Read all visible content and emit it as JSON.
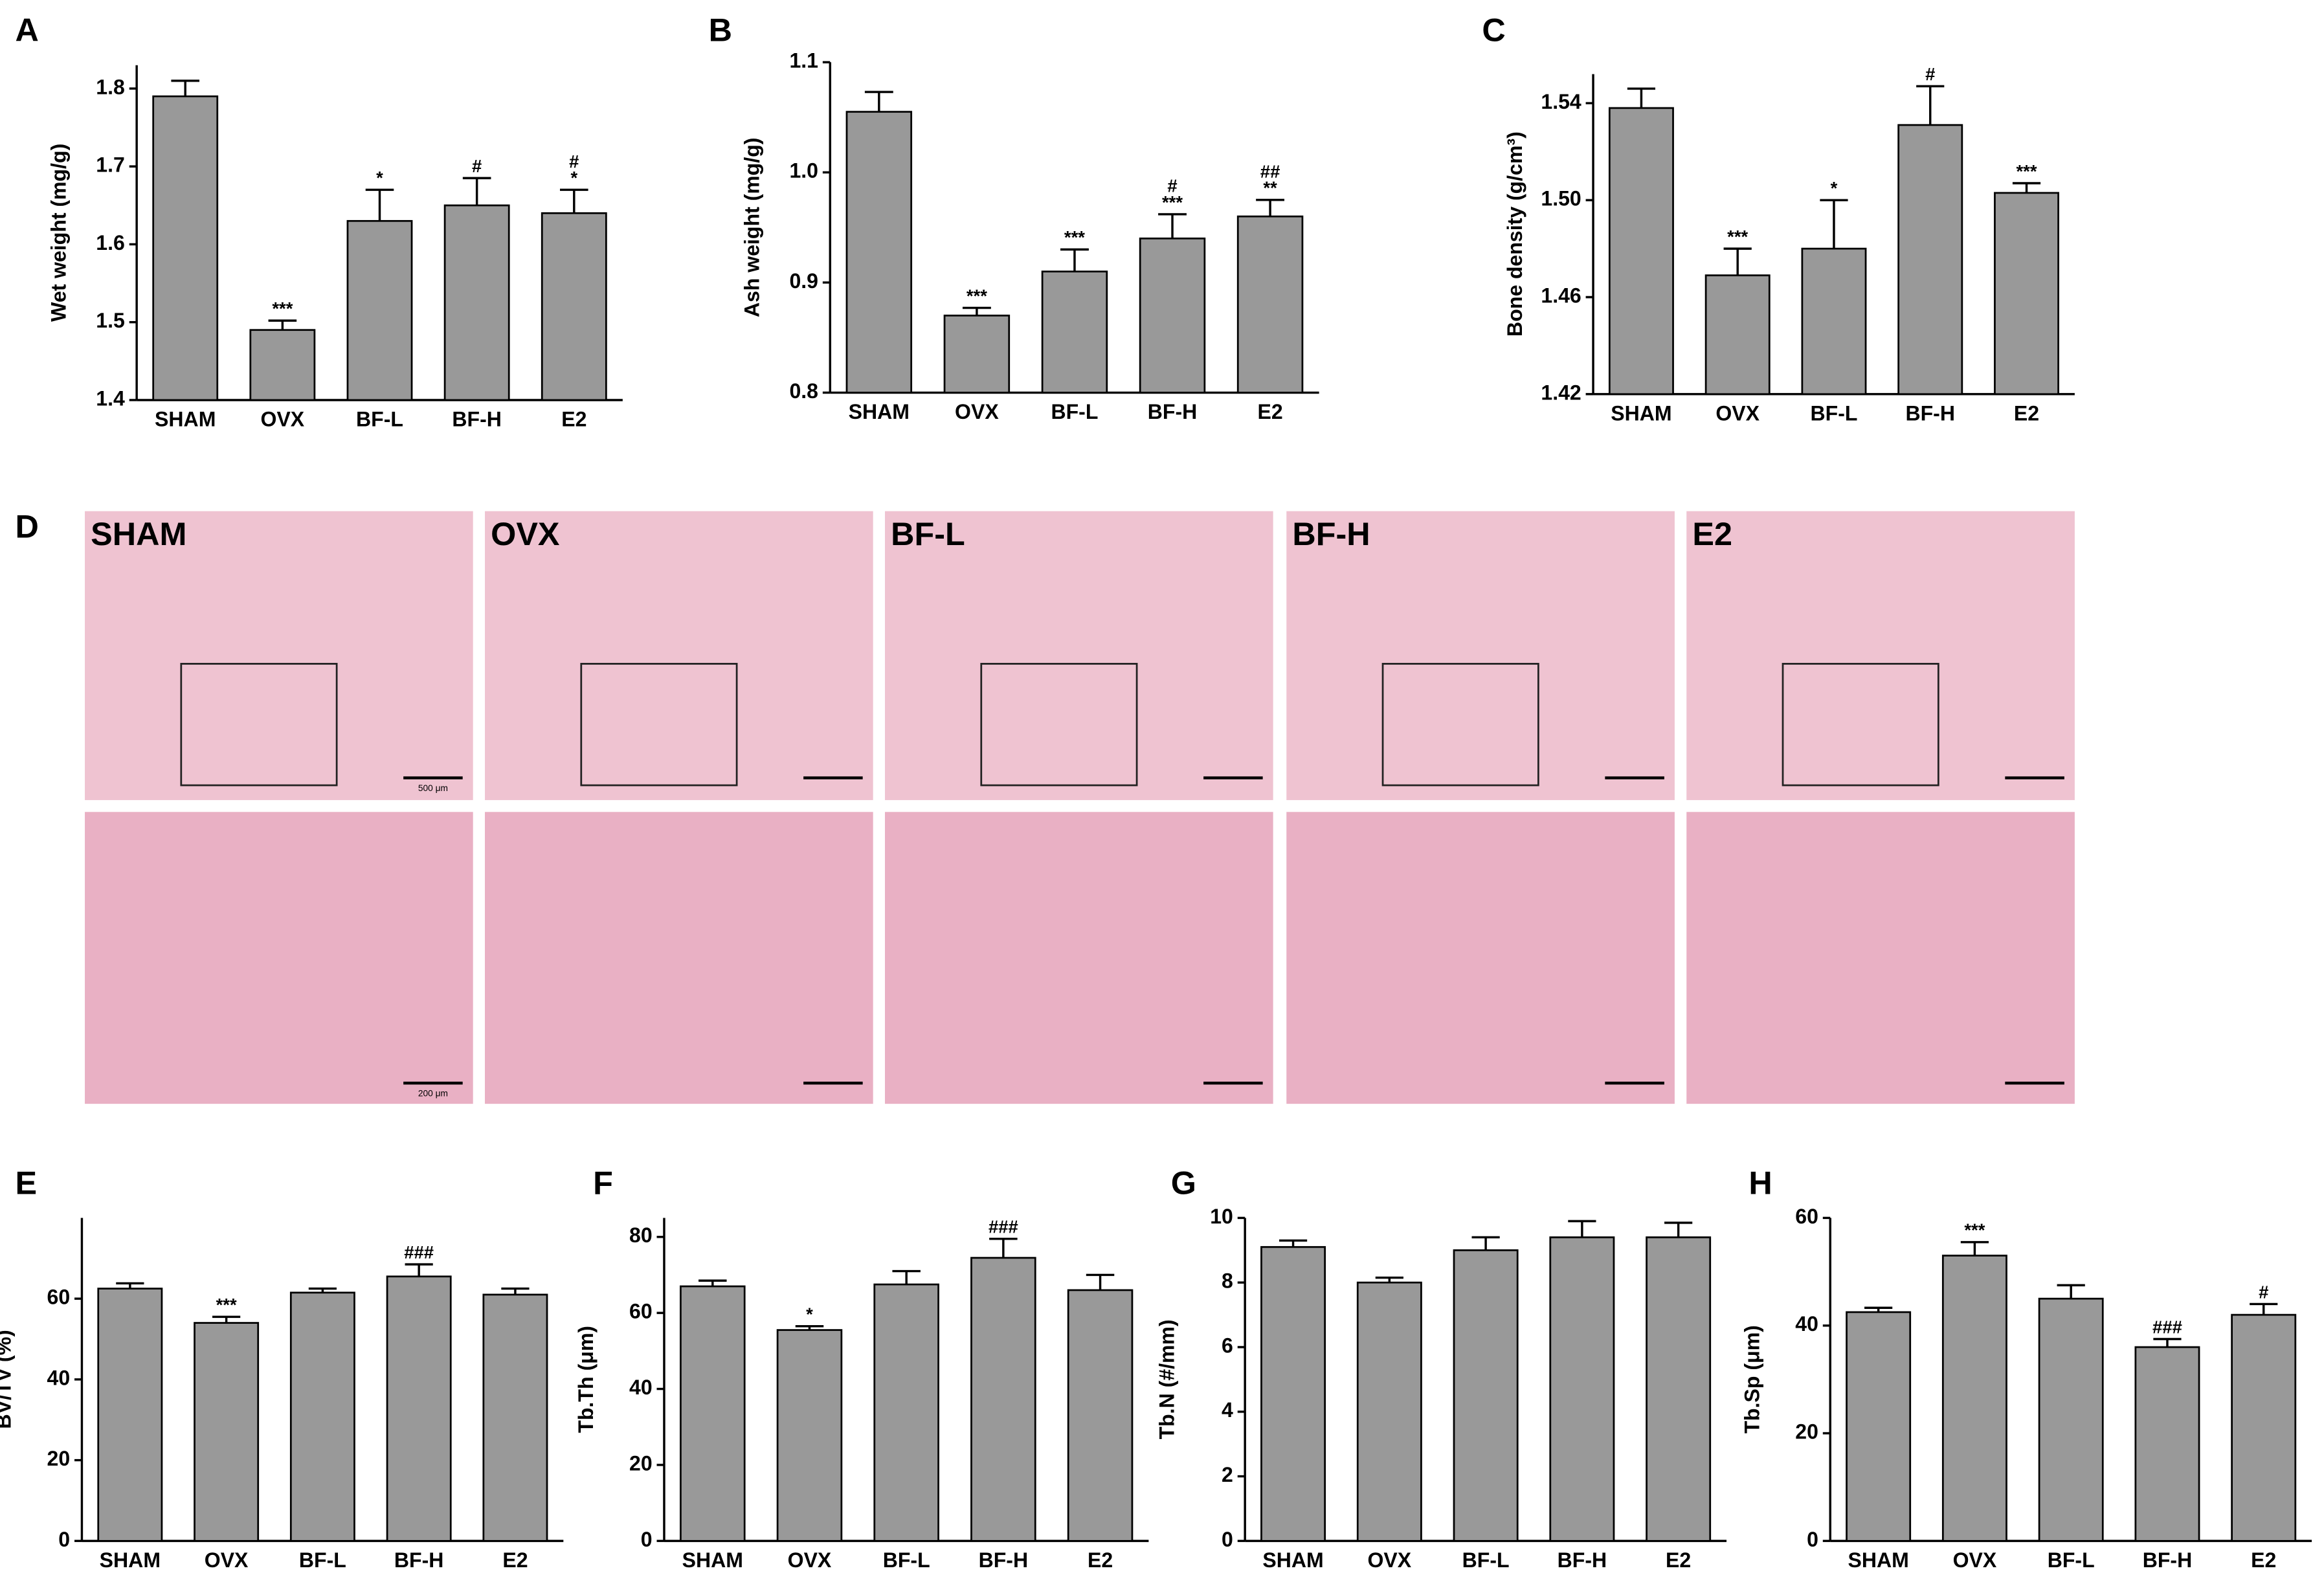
{
  "chart_data": [
    {
      "type": "bar",
      "panel": "A",
      "ylabel": "Wet weight (mg/g)",
      "categories": [
        "SHAM",
        "OVX",
        "BF-L",
        "BF-H",
        "E2"
      ],
      "values": [
        1.79,
        1.49,
        1.63,
        1.65,
        1.64
      ],
      "errors": [
        0.02,
        0.012,
        0.04,
        0.035,
        0.03
      ],
      "annotations": [
        null,
        [
          "***"
        ],
        [
          "*"
        ],
        [
          "#"
        ],
        [
          "#",
          "*"
        ]
      ],
      "color": "#999999",
      "ylim": [
        1.4,
        1.83
      ],
      "yticks": [
        1.4,
        1.5,
        1.6,
        1.7,
        1.8
      ]
    },
    {
      "type": "bar",
      "panel": "B",
      "ylabel": "Ash weight (mg/g)",
      "categories": [
        "SHAM",
        "OVX",
        "BF-L",
        "BF-H",
        "E2"
      ],
      "values": [
        1.055,
        0.87,
        0.91,
        0.94,
        0.96
      ],
      "errors": [
        0.018,
        0.007,
        0.02,
        0.022,
        0.015
      ],
      "annotations": [
        null,
        [
          "***"
        ],
        [
          "***"
        ],
        [
          "#",
          "***"
        ],
        [
          "##",
          "**"
        ]
      ],
      "color": "#999999",
      "ylim": [
        0.8,
        1.1
      ],
      "yticks": [
        0.8,
        0.9,
        {
          "value": 1,
          "label": "1.0"
        },
        1.1
      ]
    },
    {
      "type": "bar",
      "panel": "C",
      "ylabel": "Bone density (g/cm³)",
      "categories": [
        "SHAM",
        "OVX",
        "BF-L",
        "BF-H",
        "E2"
      ],
      "values": [
        1.538,
        1.469,
        1.48,
        1.531,
        1.503
      ],
      "errors": [
        0.008,
        0.011,
        0.02,
        0.016,
        0.004
      ],
      "annotations": [
        null,
        [
          "***"
        ],
        [
          "*"
        ],
        [
          "#"
        ],
        [
          "***"
        ]
      ],
      "color": "#999999",
      "ylim": [
        1.42,
        1.552
      ],
      "yticks": [
        1.42,
        1.46,
        {
          "value": 1.5,
          "label": "1.50"
        },
        1.54
      ]
    },
    {
      "type": "bar",
      "panel": "E",
      "ylabel": "BV/TV (%)",
      "categories": [
        "SHAM",
        "OVX",
        "BF-L",
        "BF-H",
        "E2"
      ],
      "values": [
        62.5,
        54,
        61.5,
        65.5,
        61
      ],
      "errors": [
        1.3,
        1.5,
        1,
        3,
        1.5
      ],
      "annotations": [
        null,
        [
          "***"
        ],
        null,
        [
          "###"
        ],
        null
      ],
      "color": "#999999",
      "ylim": [
        0,
        80
      ],
      "yticks": [
        0,
        20,
        40,
        60
      ]
    },
    {
      "type": "bar",
      "panel": "F",
      "ylabel": "Tb.Th (μm)",
      "categories": [
        "SHAM",
        "OVX",
        "BF-L",
        "BF-H",
        "E2"
      ],
      "values": [
        67,
        55.5,
        67.5,
        74.5,
        66
      ],
      "errors": [
        1.5,
        1,
        3.5,
        5,
        4
      ],
      "annotations": [
        null,
        [
          "*"
        ],
        null,
        [
          "###"
        ],
        null
      ],
      "color": "#999999",
      "ylim": [
        0,
        85
      ],
      "yticks": [
        0,
        20,
        40,
        60,
        80
      ]
    },
    {
      "type": "bar",
      "panel": "G",
      "ylabel": "Tb.N (#/mm)",
      "categories": [
        "SHAM",
        "OVX",
        "BF-L",
        "BF-H",
        "E2"
      ],
      "values": [
        9.1,
        8.0,
        9.0,
        9.4,
        9.4
      ],
      "errors": [
        0.2,
        0.15,
        0.4,
        0.5,
        0.45
      ],
      "color": "#999999",
      "ylim": [
        0,
        10
      ],
      "yticks": [
        0,
        2,
        4,
        6,
        8,
        10
      ]
    },
    {
      "type": "bar",
      "panel": "H",
      "ylabel": "Tb.Sp (μm)",
      "categories": [
        "SHAM",
        "OVX",
        "BF-L",
        "BF-H",
        "E2"
      ],
      "values": [
        42.5,
        53,
        45,
        36,
        42
      ],
      "errors": [
        0.8,
        2.5,
        2.5,
        1.5,
        2
      ],
      "annotations": [
        null,
        [
          "***"
        ],
        null,
        [
          "###"
        ],
        [
          "#"
        ]
      ],
      "color": "#999999",
      "ylim": [
        0,
        60
      ],
      "yticks": [
        0,
        20,
        40,
        60
      ]
    }
  ],
  "histology": {
    "panel": "D",
    "groups": [
      "SHAM",
      "OVX",
      "BF-L",
      "BF-H",
      "E2"
    ],
    "scale_bars": [
      "500 μm",
      "200 μm"
    ]
  }
}
